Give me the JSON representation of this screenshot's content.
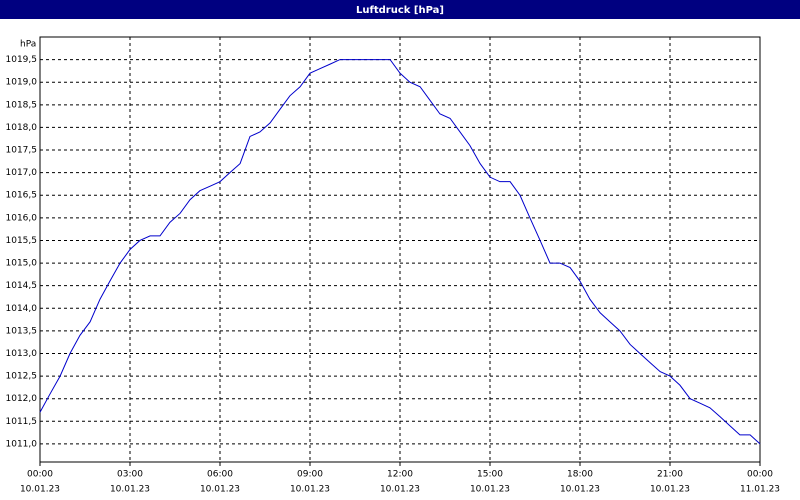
{
  "chart_data": {
    "type": "line",
    "title": "Luftdruck [hPa]",
    "y_label": "hPa",
    "x": [
      0,
      0.33,
      0.67,
      1,
      1.33,
      1.67,
      2,
      2.33,
      2.67,
      3,
      3.33,
      3.67,
      4,
      4.33,
      4.67,
      5,
      5.33,
      5.67,
      6,
      6.33,
      6.67,
      7,
      7.33,
      7.67,
      8,
      8.33,
      8.67,
      9,
      9.33,
      9.67,
      10,
      10.33,
      10.67,
      11,
      11.33,
      11.67,
      12,
      12.33,
      12.67,
      13,
      13.33,
      13.67,
      14,
      14.33,
      14.67,
      15,
      15.33,
      15.67,
      16,
      16.33,
      16.67,
      17,
      17.33,
      17.67,
      18,
      18.33,
      18.67,
      19,
      19.33,
      19.67,
      20,
      20.33,
      20.67,
      21,
      21.33,
      21.67,
      22,
      22.33,
      22.67,
      23,
      23.33,
      23.67,
      24
    ],
    "series": [
      {
        "name": "Luftdruck",
        "color": "#0000cc",
        "values": [
          1011.7,
          1012.1,
          1012.5,
          1013.0,
          1013.4,
          1013.7,
          1014.2,
          1014.6,
          1015.0,
          1015.3,
          1015.5,
          1015.6,
          1015.6,
          1015.9,
          1016.1,
          1016.4,
          1016.6,
          1016.7,
          1016.8,
          1017.0,
          1017.2,
          1017.8,
          1017.9,
          1018.1,
          1018.4,
          1018.7,
          1018.9,
          1019.2,
          1019.3,
          1019.4,
          1019.5,
          1019.5,
          1019.5,
          1019.5,
          1019.5,
          1019.5,
          1019.2,
          1019.0,
          1018.9,
          1018.6,
          1018.3,
          1018.2,
          1017.9,
          1017.6,
          1017.2,
          1016.9,
          1016.8,
          1016.8,
          1016.5,
          1016.0,
          1015.5,
          1015.0,
          1015.0,
          1014.9,
          1014.6,
          1014.2,
          1013.9,
          1013.7,
          1013.5,
          1013.2,
          1013.0,
          1012.8,
          1012.6,
          1012.5,
          1012.3,
          1012.0,
          1011.9,
          1011.8,
          1011.6,
          1011.4,
          1011.2,
          1011.2,
          1011.0
        ]
      }
    ],
    "xlim": [
      0,
      24
    ],
    "xticks": [
      {
        "value": 0,
        "label": "00:00"
      },
      {
        "value": 3,
        "label": "03:00"
      },
      {
        "value": 6,
        "label": "06:00"
      },
      {
        "value": 9,
        "label": "09:00"
      },
      {
        "value": 12,
        "label": "12:00"
      },
      {
        "value": 15,
        "label": "15:00"
      },
      {
        "value": 18,
        "label": "18:00"
      },
      {
        "value": 21,
        "label": "21:00"
      },
      {
        "value": 24,
        "label": "00:00"
      }
    ],
    "xtick_dates": [
      "10.01.23",
      "10.01.23",
      "10.01.23",
      "10.01.23",
      "10.01.23",
      "10.01.23",
      "10.01.23",
      "10.01.23",
      "11.01.23"
    ],
    "ylim": [
      1010.6,
      1020.0
    ],
    "yticks": [
      {
        "value": 1011,
        "label": "1011,0"
      },
      {
        "value": 1011.5,
        "label": "1011,5"
      },
      {
        "value": 1012,
        "label": "1012,0"
      },
      {
        "value": 1012.5,
        "label": "1012,5"
      },
      {
        "value": 1013,
        "label": "1013,0"
      },
      {
        "value": 1013.5,
        "label": "1013,5"
      },
      {
        "value": 1014,
        "label": "1014,0"
      },
      {
        "value": 1014.5,
        "label": "1014,5"
      },
      {
        "value": 1015,
        "label": "1015,0"
      },
      {
        "value": 1015.5,
        "label": "1015,5"
      },
      {
        "value": 1016,
        "label": "1016,0"
      },
      {
        "value": 1016.5,
        "label": "1016,5"
      },
      {
        "value": 1017,
        "label": "1017,0"
      },
      {
        "value": 1017.5,
        "label": "1017,5"
      },
      {
        "value": 1018,
        "label": "1018,0"
      },
      {
        "value": 1018.5,
        "label": "1018,5"
      },
      {
        "value": 1019,
        "label": "1019,0"
      },
      {
        "value": 1019.5,
        "label": "1019,5"
      }
    ],
    "grid": true
  }
}
